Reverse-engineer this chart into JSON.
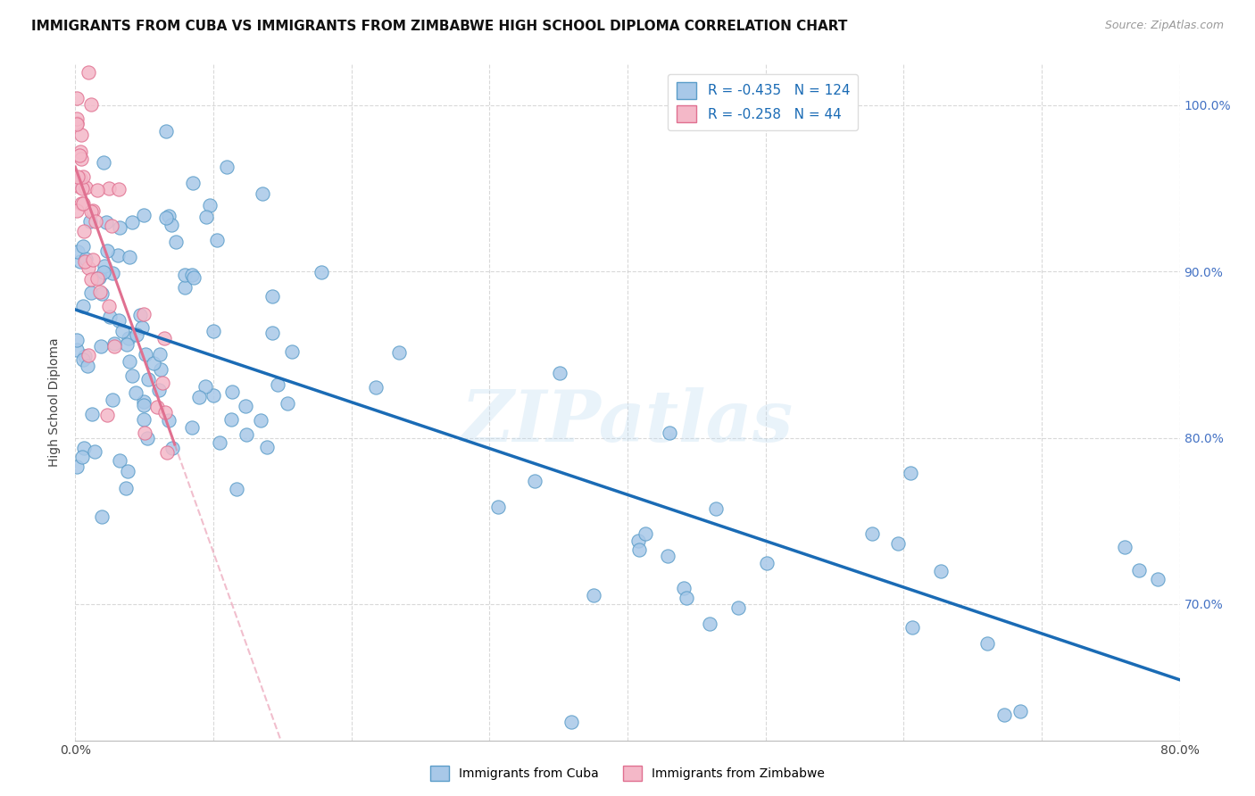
{
  "title": "IMMIGRANTS FROM CUBA VS IMMIGRANTS FROM ZIMBABWE HIGH SCHOOL DIPLOMA CORRELATION CHART",
  "source": "Source: ZipAtlas.com",
  "ylabel": "High School Diploma",
  "xlim": [
    0.0,
    0.8
  ],
  "ylim": [
    0.618,
    1.025
  ],
  "x_ticks": [
    0.0,
    0.1,
    0.2,
    0.3,
    0.4,
    0.5,
    0.6,
    0.7,
    0.8
  ],
  "x_tick_labels": [
    "0.0%",
    "",
    "",
    "",
    "",
    "",
    "",
    "",
    "80.0%"
  ],
  "y_ticks": [
    0.7,
    0.8,
    0.9,
    1.0
  ],
  "y_tick_labels_right": [
    "70.0%",
    "80.0%",
    "90.0%",
    "100.0%"
  ],
  "cuba_color": "#a8c8e8",
  "cuba_edge_color": "#5b9dc9",
  "zimbabwe_color": "#f4b8c8",
  "zimbabwe_edge_color": "#e07090",
  "legend_cuba_R": "-0.435",
  "legend_cuba_N": "124",
  "legend_zimbabwe_R": "-0.258",
  "legend_zimbabwe_N": "44",
  "watermark": "ZIPatlas",
  "cuba_line_color": "#1a6bb5",
  "zimbabwe_line_color": "#e07090",
  "background_color": "#ffffff",
  "grid_color": "#d0d0d0",
  "title_fontsize": 11,
  "axis_fontsize": 10
}
